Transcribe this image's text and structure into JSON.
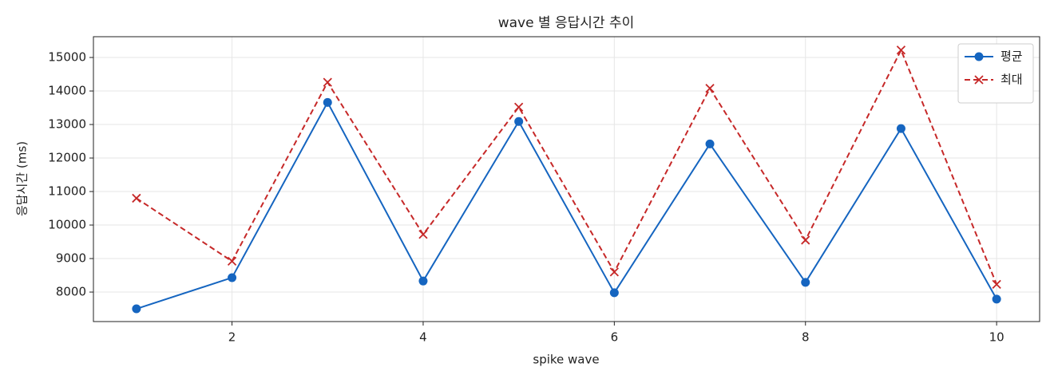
{
  "chart_data": {
    "type": "line",
    "title": "wave 별 응답시간 추이",
    "x_label": "spike wave",
    "y_label": "응답시간 (ms)",
    "x": [
      1,
      2,
      3,
      4,
      5,
      6,
      7,
      8,
      9,
      10
    ],
    "series": [
      {
        "name": "평균",
        "color": "#1565c0",
        "marker": "circle",
        "dash": false,
        "values": [
          7500,
          8430,
          13660,
          8330,
          13090,
          7980,
          12420,
          8290,
          12880,
          7790
        ]
      },
      {
        "name": "최대",
        "color": "#c62828",
        "marker": "x",
        "dash": true,
        "values": [
          10800,
          8920,
          14260,
          9720,
          13520,
          8600,
          14080,
          9550,
          15220,
          8230
        ]
      }
    ],
    "xlim": [
      0.55,
      10.45
    ],
    "xticks": [
      2,
      4,
      6,
      8,
      10
    ],
    "ylim": [
      7120,
      15620
    ],
    "yticks": [
      8000,
      9000,
      10000,
      11000,
      12000,
      13000,
      14000,
      15000
    ],
    "grid": true,
    "legend": "upper right"
  }
}
